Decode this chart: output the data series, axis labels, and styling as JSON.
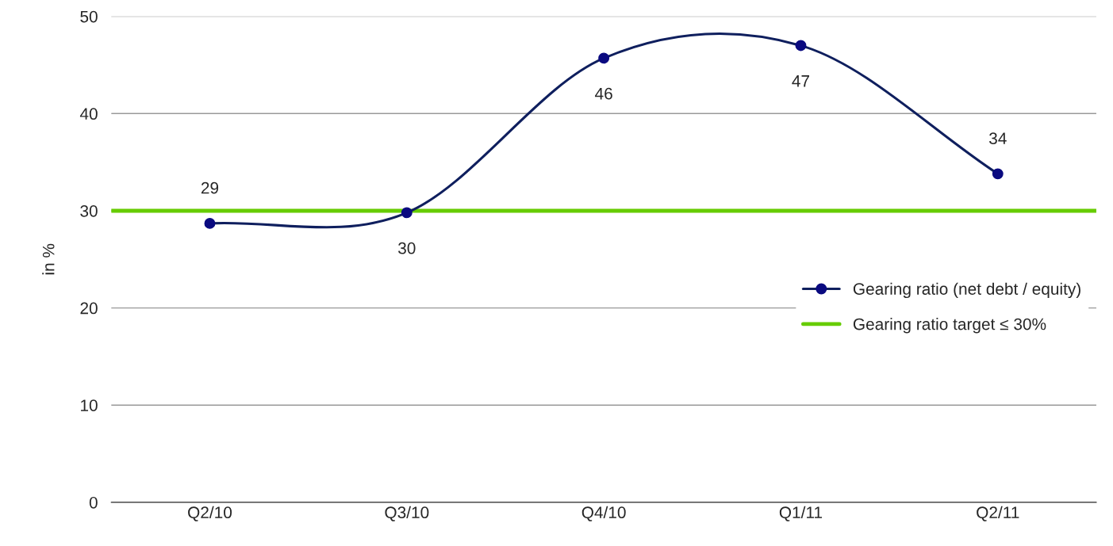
{
  "chart_data": {
    "type": "line",
    "ylabel": "in %",
    "categories": [
      "Q2/10",
      "Q3/10",
      "Q4/10",
      "Q1/11",
      "Q2/11"
    ],
    "series": [
      {
        "name": "Gearing ratio (net debt / equity)",
        "color": "#0f1f5e",
        "values": [
          28.7,
          29.8,
          45.7,
          47.0,
          33.8
        ],
        "value_labels": [
          "29",
          "30",
          "46",
          "47",
          "34"
        ]
      }
    ],
    "ref_lines": [
      {
        "axis": "y",
        "value": 30,
        "label": "Gearing ratio target ≤ 30%",
        "color": "#66cc00",
        "line_style": "solid"
      }
    ],
    "ylim": [
      0,
      50
    ],
    "yticks": [
      0,
      10,
      20,
      30,
      40,
      50
    ],
    "grid": "y",
    "legend": "right",
    "marker": "circle",
    "line_style": "solid"
  }
}
